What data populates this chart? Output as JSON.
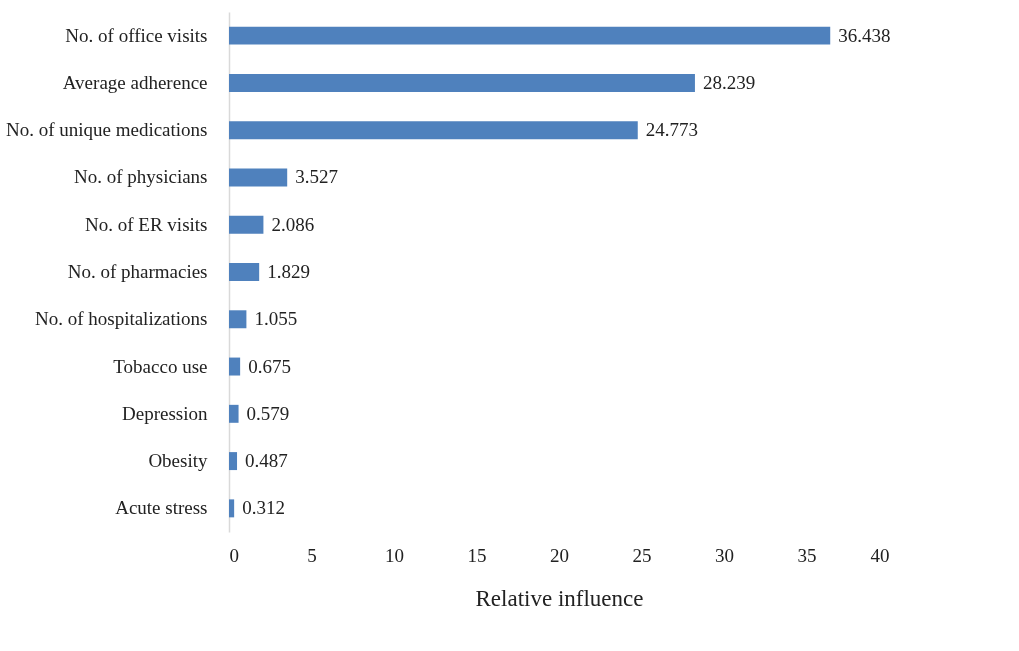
{
  "chart_data": {
    "type": "bar",
    "orientation": "horizontal",
    "xlabel": "Relative influence",
    "categories": [
      "No. of office visits",
      "Average adherence",
      "No. of unique medications",
      "No. of physicians",
      "No. of ER visits",
      "No. of pharmacies",
      "No. of hospitalizations",
      "Tobacco use",
      "Depression",
      "Obesity",
      "Acute stress"
    ],
    "values": [
      36.438,
      28.239,
      24.773,
      3.527,
      2.086,
      1.829,
      1.055,
      0.675,
      0.579,
      0.487,
      0.312
    ],
    "color": "#4f81bd",
    "xlim": [
      0,
      40
    ],
    "xticks": [
      0,
      5,
      10,
      15,
      20,
      25,
      30,
      35,
      40
    ],
    "grid": false,
    "data_labels": true
  }
}
